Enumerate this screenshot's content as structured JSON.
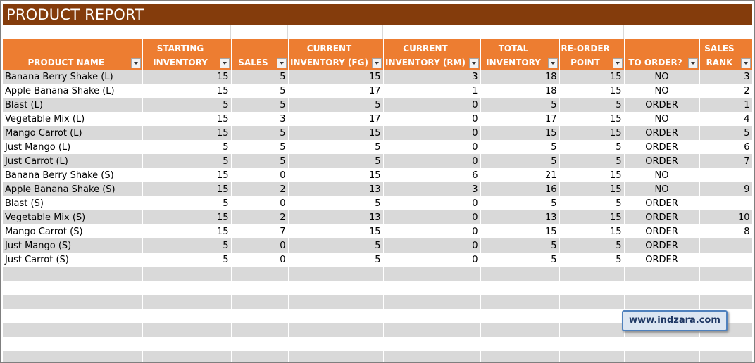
{
  "report": {
    "title": "PRODUCT REPORT",
    "columns": [
      {
        "line1": "",
        "line2": "PRODUCT NAME"
      },
      {
        "line1": "STARTING",
        "line2": "INVENTORY"
      },
      {
        "line1": "",
        "line2": "SALES"
      },
      {
        "line1": "CURRENT",
        "line2": "INVENTORY (FG)"
      },
      {
        "line1": "CURRENT",
        "line2": "INVENTORY (RM)"
      },
      {
        "line1": "TOTAL",
        "line2": "INVENTORY"
      },
      {
        "line1": "RE-ORDER",
        "line2": "POINT"
      },
      {
        "line1": "",
        "line2": "TO ORDER?"
      },
      {
        "line1": "SALES",
        "line2": "RANK"
      }
    ],
    "rows": [
      {
        "product": "Banana Berry Shake (L)",
        "starting": "15",
        "sales": "5",
        "fg": "15",
        "rm": "3",
        "total": "18",
        "reorder": "15",
        "to_order": "NO",
        "rank": "3"
      },
      {
        "product": "Apple Banana Shake (L)",
        "starting": "15",
        "sales": "5",
        "fg": "17",
        "rm": "1",
        "total": "18",
        "reorder": "15",
        "to_order": "NO",
        "rank": "2"
      },
      {
        "product": "Blast (L)",
        "starting": "5",
        "sales": "5",
        "fg": "5",
        "rm": "0",
        "total": "5",
        "reorder": "5",
        "to_order": "ORDER",
        "rank": "1"
      },
      {
        "product": "Vegetable Mix (L)",
        "starting": "15",
        "sales": "3",
        "fg": "17",
        "rm": "0",
        "total": "17",
        "reorder": "15",
        "to_order": "NO",
        "rank": "4"
      },
      {
        "product": "Mango Carrot (L)",
        "starting": "15",
        "sales": "5",
        "fg": "15",
        "rm": "0",
        "total": "15",
        "reorder": "15",
        "to_order": "ORDER",
        "rank": "5"
      },
      {
        "product": "Just Mango (L)",
        "starting": "5",
        "sales": "5",
        "fg": "5",
        "rm": "0",
        "total": "5",
        "reorder": "5",
        "to_order": "ORDER",
        "rank": "6"
      },
      {
        "product": "Just Carrot (L)",
        "starting": "5",
        "sales": "5",
        "fg": "5",
        "rm": "0",
        "total": "5",
        "reorder": "5",
        "to_order": "ORDER",
        "rank": "7"
      },
      {
        "product": "Banana Berry Shake (S)",
        "starting": "15",
        "sales": "0",
        "fg": "15",
        "rm": "6",
        "total": "21",
        "reorder": "15",
        "to_order": "NO",
        "rank": ""
      },
      {
        "product": "Apple Banana Shake (S)",
        "starting": "15",
        "sales": "2",
        "fg": "13",
        "rm": "3",
        "total": "16",
        "reorder": "15",
        "to_order": "NO",
        "rank": "9"
      },
      {
        "product": "Blast (S)",
        "starting": "5",
        "sales": "0",
        "fg": "5",
        "rm": "0",
        "total": "5",
        "reorder": "5",
        "to_order": "ORDER",
        "rank": ""
      },
      {
        "product": "Vegetable Mix (S)",
        "starting": "15",
        "sales": "2",
        "fg": "13",
        "rm": "0",
        "total": "13",
        "reorder": "15",
        "to_order": "ORDER",
        "rank": "10"
      },
      {
        "product": "Mango Carrot (S)",
        "starting": "15",
        "sales": "7",
        "fg": "15",
        "rm": "0",
        "total": "15",
        "reorder": "15",
        "to_order": "ORDER",
        "rank": "8"
      },
      {
        "product": "Just Mango (S)",
        "starting": "5",
        "sales": "0",
        "fg": "5",
        "rm": "0",
        "total": "5",
        "reorder": "5",
        "to_order": "ORDER",
        "rank": ""
      },
      {
        "product": "Just Carrot (S)",
        "starting": "5",
        "sales": "0",
        "fg": "5",
        "rm": "0",
        "total": "5",
        "reorder": "5",
        "to_order": "ORDER",
        "rank": ""
      }
    ],
    "empty_rows": 7
  },
  "watermark": {
    "text": "www.indzara.com"
  },
  "colors": {
    "title_bg": "#843c0c",
    "header_bg": "#ed7d31",
    "band": "#d9d9d9"
  },
  "icons": {
    "filter": "filter-dropdown-icon"
  }
}
